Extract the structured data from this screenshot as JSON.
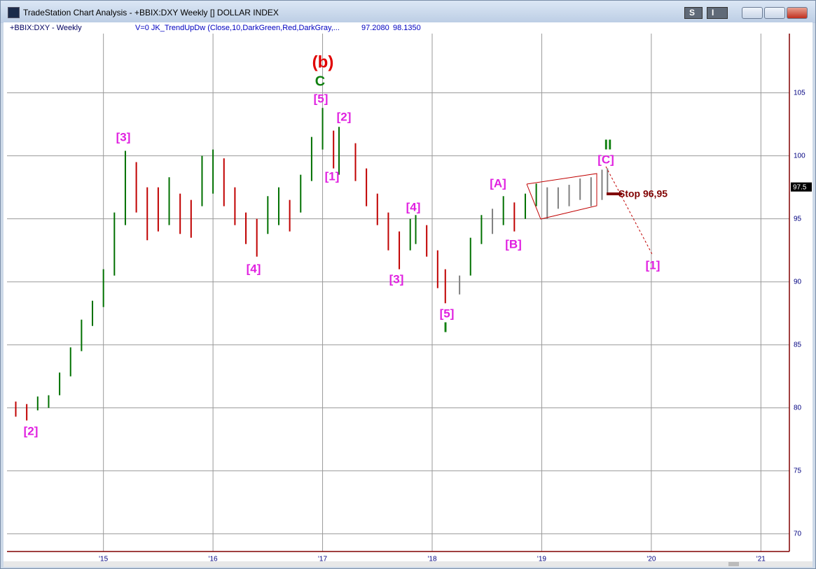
{
  "window": {
    "title": "TradeStation Chart Analysis - +BBIX:DXY Weekly [] DOLLAR INDEX",
    "buttons": [
      "S",
      "I"
    ]
  },
  "header": {
    "symbol": "+BBIX:DXY - Weekly",
    "indicator": "V=0  JK_TrendUpDw (Close,10,DarkGreen,Red,DarkGray,...",
    "readings": [
      "97.2080",
      "98.1350"
    ]
  },
  "chart_data": {
    "type": "range_bar",
    "x": [
      2014.2,
      2014.3,
      2014.4,
      2014.5,
      2014.6,
      2014.7,
      2014.8,
      2014.9,
      2015.0,
      2015.1,
      2015.2,
      2015.3,
      2015.4,
      2015.5,
      2015.6,
      2015.7,
      2015.8,
      2015.9,
      2016.0,
      2016.1,
      2016.2,
      2016.3,
      2016.4,
      2016.5,
      2016.6,
      2016.7,
      2016.8,
      2016.9,
      2017.0,
      2017.1,
      2017.15,
      2017.3,
      2017.4,
      2017.5,
      2017.6,
      2017.7,
      2017.8,
      2017.85,
      2017.95,
      2018.05,
      2018.12,
      2018.25,
      2018.35,
      2018.45,
      2018.55,
      2018.65,
      2018.75,
      2018.85,
      2018.95,
      2019.05,
      2019.15,
      2019.25,
      2019.35,
      2019.45,
      2019.55,
      2019.6
    ],
    "series": [
      {
        "name": "high",
        "values": [
          80.5,
          80.3,
          80.9,
          81.0,
          82.8,
          84.8,
          87.0,
          88.5,
          91.0,
          95.5,
          100.4,
          99.5,
          97.5,
          97.5,
          98.3,
          97.0,
          96.5,
          100.0,
          100.5,
          99.8,
          97.5,
          95.5,
          95.0,
          96.8,
          97.5,
          96.5,
          98.5,
          101.5,
          103.8,
          102.0,
          102.3,
          101.0,
          99.0,
          97.0,
          95.5,
          94.0,
          95.0,
          95.3,
          94.5,
          92.5,
          91.0,
          90.5,
          93.5,
          95.3,
          95.8,
          96.8,
          96.3,
          97.0,
          97.8,
          97.5,
          97.5,
          97.7,
          98.2,
          98.3,
          98.9,
          99.0
        ]
      },
      {
        "name": "low",
        "values": [
          79.3,
          79.0,
          79.8,
          80.0,
          81.0,
          82.5,
          84.5,
          86.5,
          88.0,
          90.5,
          94.5,
          95.5,
          93.3,
          94.0,
          94.5,
          93.8,
          93.5,
          96.0,
          97.0,
          96.0,
          94.5,
          93.0,
          92.0,
          93.8,
          94.5,
          94.0,
          95.5,
          98.0,
          100.5,
          99.0,
          98.5,
          98.0,
          96.0,
          94.5,
          92.5,
          91.0,
          92.5,
          93.0,
          92.0,
          89.5,
          88.3,
          89.0,
          90.5,
          93.0,
          93.8,
          94.5,
          94.0,
          95.0,
          96.0,
          95.0,
          95.8,
          96.0,
          96.5,
          96.0,
          96.5,
          97.0
        ]
      }
    ],
    "bar_colors": [
      "#c00000",
      "#c00000",
      "#007000",
      "#007000",
      "#007000",
      "#007000",
      "#007000",
      "#007000",
      "#007000",
      "#007000",
      "#007000",
      "#c00000",
      "#c00000",
      "#c00000",
      "#007000",
      "#c00000",
      "#c00000",
      "#007000",
      "#007000",
      "#c00000",
      "#c00000",
      "#c00000",
      "#c00000",
      "#007000",
      "#007000",
      "#c00000",
      "#007000",
      "#007000",
      "#007000",
      "#c00000",
      "#007000",
      "#c00000",
      "#c00000",
      "#c00000",
      "#c00000",
      "#c00000",
      "#007000",
      "#007000",
      "#c00000",
      "#c00000",
      "#c00000",
      "#808080",
      "#007000",
      "#007000",
      "#808080",
      "#007000",
      "#c00000",
      "#007000",
      "#007000",
      "#808080",
      "#808080",
      "#808080",
      "#808080",
      "#808080",
      "#808080",
      "#808080"
    ],
    "xlim": [
      2014.12,
      2021.26
    ],
    "xticks": [
      {
        "value": 2015,
        "label": "'15"
      },
      {
        "value": 2016,
        "label": "'16"
      },
      {
        "value": 2017,
        "label": "'17"
      },
      {
        "value": 2018,
        "label": "'18"
      },
      {
        "value": 2019,
        "label": "'19"
      },
      {
        "value": 2020,
        "label": "'20"
      },
      {
        "value": 2021,
        "label": "'21"
      }
    ],
    "ylim": [
      68.6,
      109.7
    ],
    "yticks": [
      70,
      75,
      80,
      85,
      90,
      95,
      100,
      105
    ],
    "grid": true,
    "last_price": 97.5,
    "annotations": [
      "(b)",
      "C",
      "[5]",
      "[2]",
      "[1]",
      "[3]",
      "[4]",
      "[2]",
      "[3]",
      "[4]",
      "[5]",
      "I",
      "[A]",
      "[B]",
      "[C]",
      "II",
      "[1]",
      "Stop 96,95"
    ]
  }
}
